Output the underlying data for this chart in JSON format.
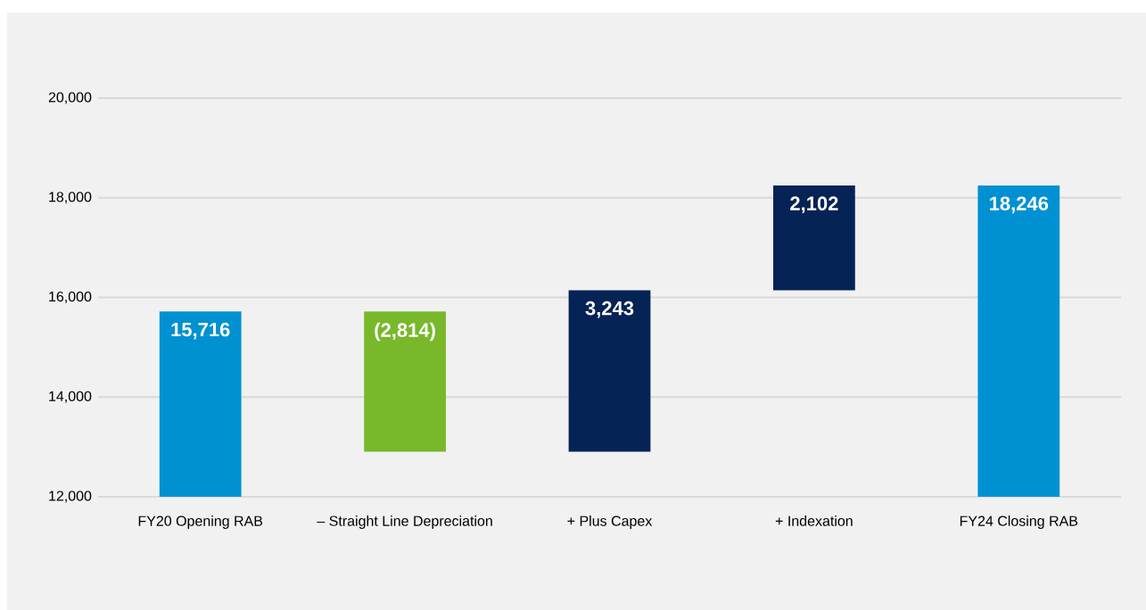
{
  "chart_data": {
    "type": "bar",
    "categories": [
      "FY20 Opening RAB",
      "– Straight Line Depreciation",
      "+ Plus Capex",
      "+ Indexation",
      "FY24 Closing RAB"
    ],
    "base": [
      12000,
      15716,
      12902,
      16145,
      12000
    ],
    "values": [
      3716,
      -2814,
      3243,
      2102,
      6246
    ],
    "value_labels": [
      "15,716",
      "(2,814)",
      "3,243",
      "2,102",
      "18,246"
    ],
    "colors": [
      "#0091d2",
      "#78b82a",
      "#052355",
      "#052355",
      "#0091d2"
    ],
    "ylim": [
      12000,
      20000
    ],
    "yticks": [
      {
        "value": 12000,
        "label": "12,000"
      },
      {
        "value": 14000,
        "label": "14,000"
      },
      {
        "value": 16000,
        "label": "16,000"
      },
      {
        "value": 18000,
        "label": "18,000"
      },
      {
        "value": 20000,
        "label": "20,000"
      }
    ],
    "grid": "y"
  }
}
